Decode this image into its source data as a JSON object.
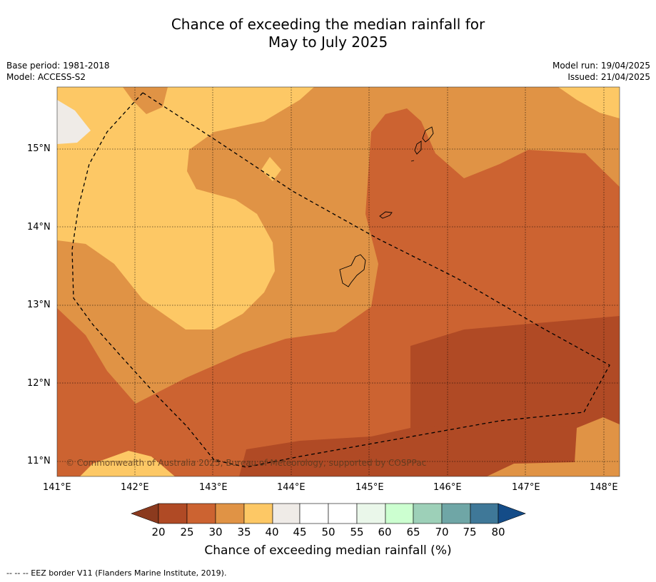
{
  "title_line1": "Chance of exceeding the median rainfall for",
  "title_line2": "May to July 2025",
  "base_period": "Base period: 1981-2018",
  "model": "Model: ACCESS-S2",
  "model_run": "Model run: 19/04/2025",
  "issued": "Issued: 21/04/2025",
  "copyright": "© Commonwealth of Australia 2025, Bureau of Meteorology, supported by COSPPac",
  "colorbar_title": "Chance of exceeding median rainfall (%)",
  "footnote": "--  --  -- EEZ border V11 (Flanders Marine Institute, 2019).",
  "lon_ticks": [
    "141°E",
    "142°E",
    "143°E",
    "144°E",
    "145°E",
    "146°E",
    "147°E",
    "148°E"
  ],
  "lat_ticks": [
    "15°N",
    "14°N",
    "13°N",
    "12°N",
    "11°N"
  ],
  "colorbar": {
    "labels": [
      "20",
      "25",
      "30",
      "35",
      "40",
      "45",
      "50",
      "55",
      "60",
      "65",
      "70",
      "75",
      "80"
    ],
    "colors": [
      "#8b3a1e",
      "#b04a25",
      "#cc6331",
      "#e09345",
      "#fdc865",
      "#efebe7",
      "#ffffff",
      "#ffffff",
      "#eaf7ea",
      "#ccffd0",
      "#9dd0b8",
      "#6fa6a6",
      "#3f7898",
      "#144c88"
    ]
  },
  "palette": {
    "c20_25": "#b04a25",
    "c25_30": "#cc6331",
    "c30_35": "#e09345",
    "c35_40": "#fdc865",
    "c40_45": "#efebe7"
  }
}
